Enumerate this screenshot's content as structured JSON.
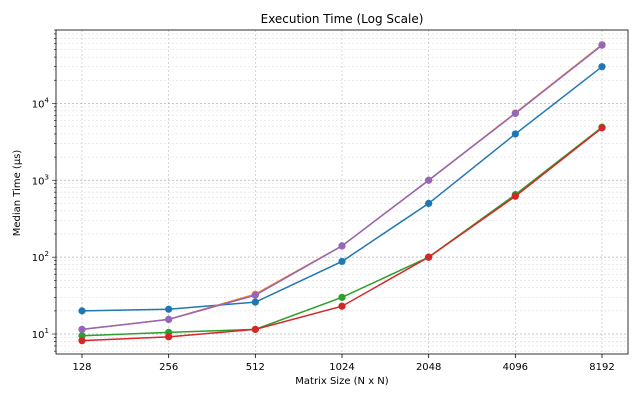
{
  "chart_data": {
    "type": "line",
    "title": "Execution Time (Log Scale)",
    "xlabel": "Matrix Size (N x N)",
    "ylabel": "Median Time (µs)",
    "y_scale": "log",
    "ylim": [
      5.5,
      90000
    ],
    "grid": true,
    "legend": "none",
    "categories": [
      "128",
      "256",
      "512",
      "1024",
      "2048",
      "4096",
      "8192"
    ],
    "y_ticks": [
      {
        "value": 10,
        "base": "10",
        "exp": "1"
      },
      {
        "value": 100,
        "base": "10",
        "exp": "2"
      },
      {
        "value": 1000,
        "base": "10",
        "exp": "3"
      },
      {
        "value": 10000,
        "base": "10",
        "exp": "4"
      }
    ],
    "series": [
      {
        "color": "#1f77b4",
        "values": [
          20,
          21,
          26,
          88,
          500,
          4000,
          30000
        ]
      },
      {
        "color": "#ff7f0e",
        "values": [
          11.5,
          15.5,
          33,
          140,
          1000,
          7500,
          58000
        ]
      },
      {
        "color": "#2ca02c",
        "values": [
          9.5,
          10.5,
          11.5,
          30,
          100,
          650,
          4900
        ]
      },
      {
        "color": "#d62728",
        "values": [
          8.2,
          9.2,
          11.5,
          23,
          100,
          620,
          4800
        ]
      },
      {
        "color": "#9467bd",
        "values": [
          11.5,
          15.5,
          32,
          140,
          1000,
          7400,
          57000
        ]
      }
    ]
  }
}
